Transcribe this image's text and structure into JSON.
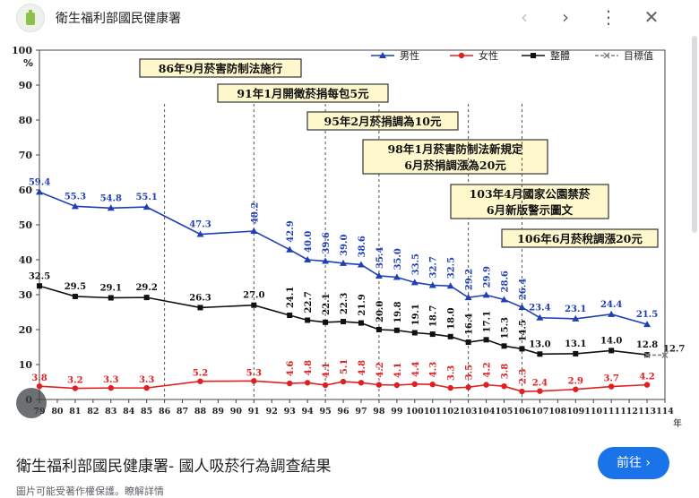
{
  "header": {
    "site_title": "衛生福利部國民健康署",
    "back_label": "‹",
    "forward_label": "›",
    "more_label": "⋮",
    "close_label": "✕"
  },
  "footer": {
    "title": "衛生福利部國民健康署- 國人吸菸行為調查結果",
    "go_label": "前往 ›",
    "bottom_text": "圖片可能受著作權保護。瞭解詳情"
  },
  "colors": {
    "male": "#1f3fb5",
    "female": "#e02020",
    "total": "#111111",
    "target": "#808080",
    "box": "#fff8cc",
    "accent": "#1a73e8"
  },
  "chart_data": {
    "type": "line",
    "title": "",
    "ylabel": "%",
    "xlabel": "年",
    "ylim": [
      0,
      100
    ],
    "yticks": [
      0,
      10,
      20,
      30,
      40,
      50,
      60,
      70,
      80,
      90,
      100
    ],
    "x_ticks": [
      79,
      80,
      81,
      82,
      83,
      84,
      85,
      86,
      87,
      88,
      89,
      90,
      91,
      92,
      93,
      94,
      95,
      96,
      97,
      98,
      99,
      100,
      101,
      102,
      103,
      104,
      105,
      106,
      107,
      108,
      109,
      110,
      111,
      112,
      113,
      114
    ],
    "legend": [
      "男性",
      "女性",
      "整體",
      "目標值"
    ],
    "series": [
      {
        "name": "男性",
        "color": "#1f3fb5",
        "x": [
          79,
          81,
          83,
          85,
          88,
          91,
          93,
          94,
          95,
          96,
          97,
          98,
          99,
          100,
          101,
          102,
          103,
          104,
          105,
          106,
          107,
          109,
          111,
          113
        ],
        "values": [
          59.4,
          55.3,
          54.8,
          55.1,
          47.3,
          48.2,
          42.9,
          40.0,
          39.6,
          39.0,
          38.6,
          35.4,
          35.0,
          33.5,
          32.7,
          32.5,
          29.2,
          29.9,
          28.6,
          26.4,
          23.4,
          23.1,
          24.4,
          21.5
        ]
      },
      {
        "name": "女性",
        "color": "#e02020",
        "x": [
          79,
          81,
          83,
          85,
          88,
          91,
          93,
          94,
          95,
          96,
          97,
          98,
          99,
          100,
          101,
          102,
          103,
          104,
          105,
          106,
          107,
          109,
          111,
          113
        ],
        "values": [
          3.8,
          3.2,
          3.3,
          3.3,
          5.2,
          5.3,
          4.6,
          4.8,
          4.1,
          5.1,
          4.8,
          4.2,
          4.1,
          4.4,
          4.3,
          3.3,
          3.5,
          4.2,
          3.8,
          2.3,
          2.4,
          2.9,
          3.7,
          4.2
        ]
      },
      {
        "name": "整體",
        "color": "#111111",
        "x": [
          79,
          81,
          83,
          85,
          88,
          91,
          93,
          94,
          95,
          96,
          97,
          98,
          99,
          100,
          101,
          102,
          103,
          104,
          105,
          106,
          107,
          109,
          111,
          113
        ],
        "values": [
          32.5,
          29.5,
          29.1,
          29.2,
          26.3,
          27.0,
          24.1,
          22.7,
          22.1,
          22.3,
          21.9,
          20.0,
          19.8,
          19.1,
          18.7,
          18.0,
          16.4,
          17.1,
          15.3,
          14.5,
          13.0,
          13.1,
          14.0,
          12.8
        ]
      },
      {
        "name": "目標值",
        "color": "#808080",
        "x": [
          113,
          114
        ],
        "values": [
          12.7,
          12.7
        ],
        "label": "12.7"
      }
    ],
    "annotations": [
      {
        "text": "86年9月菸害防制法施行",
        "year": 86
      },
      {
        "text": "91年1月開徵菸捐每包5元",
        "year": 91
      },
      {
        "text": "95年2月菸捐調為10元",
        "year": 95
      },
      {
        "text": "98年1月菸害防制法新規定\n6月菸捐調漲為20元",
        "year": 98
      },
      {
        "text": "103年4月國家公園禁菸\n6月新版警示圖文",
        "year": 103
      },
      {
        "text": "106年6月菸稅調漲20元",
        "year": 106
      }
    ]
  }
}
